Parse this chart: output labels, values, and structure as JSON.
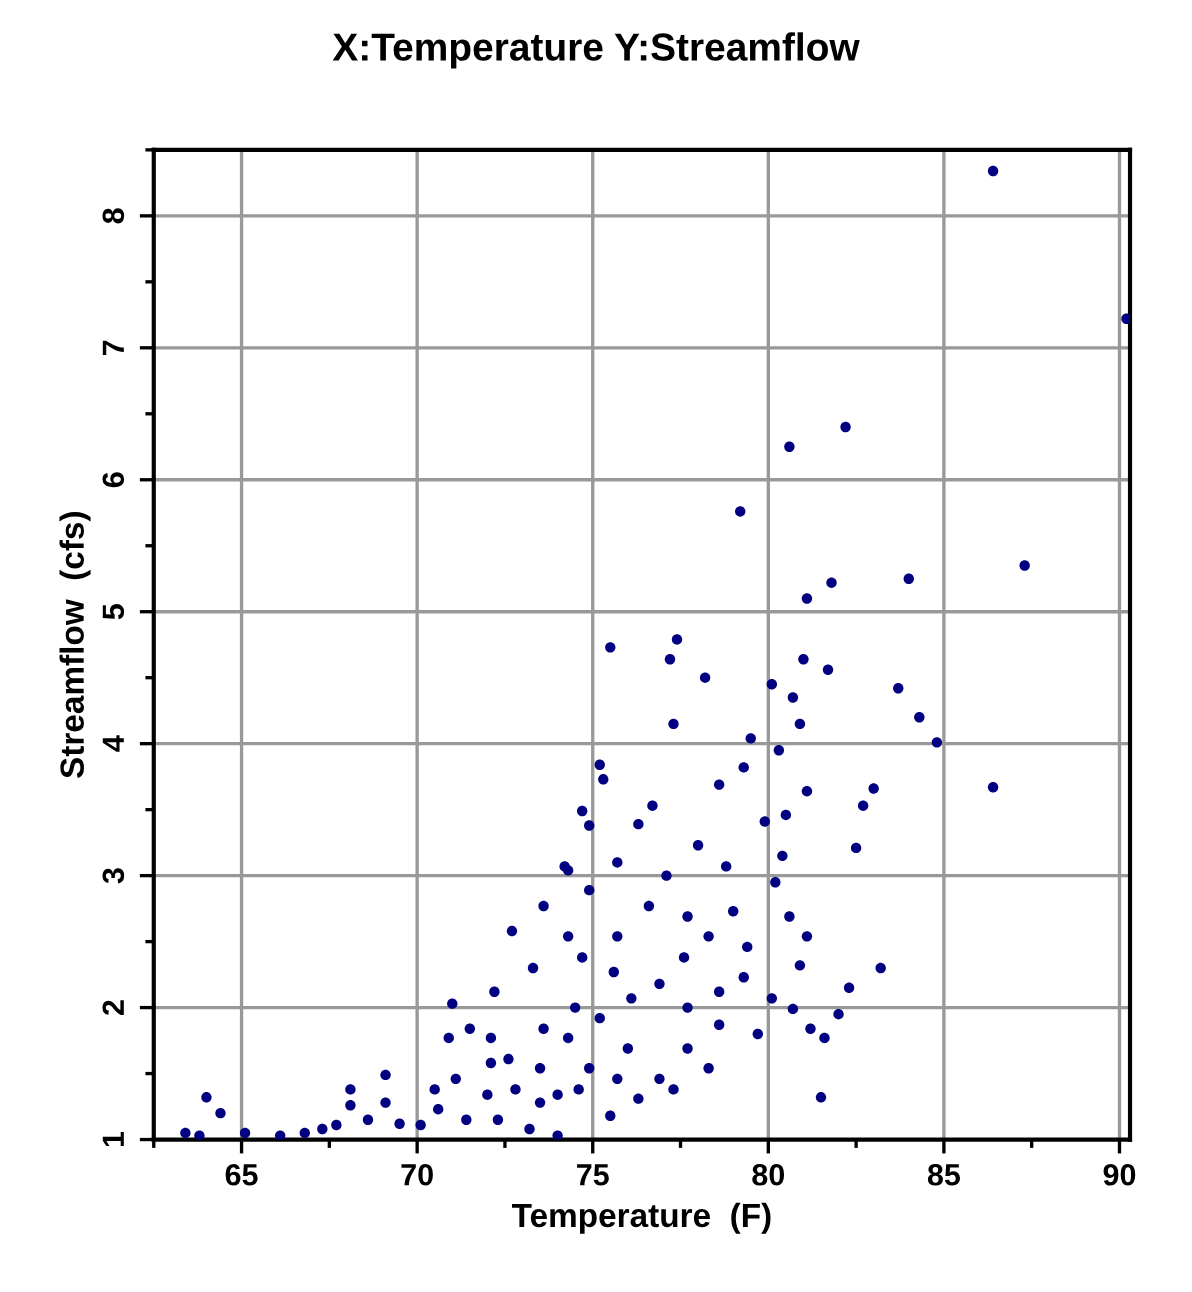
{
  "chart_data": {
    "type": "scatter",
    "title": "X:Temperature Y:Streamflow",
    "xlabel": "Temperature  (F)",
    "ylabel": "Streamflow  (cfs)",
    "x": [
      86.4,
      90.2,
      82.2,
      80.6,
      79.2,
      87.3,
      84.0,
      81.8,
      81.1,
      75.5,
      77.4,
      77.2,
      78.2,
      83.7,
      81.0,
      81.7,
      80.1,
      86.4,
      84.8,
      84.3,
      80.7,
      80.9,
      80.3,
      79.5,
      79.3,
      78.6,
      77.3,
      75.2,
      75.3,
      74.7,
      74.9,
      74.2,
      75.7,
      76.7,
      76.3,
      78.0,
      78.8,
      79.9,
      80.5,
      81.1,
      82.7,
      83.0,
      82.5,
      83.2,
      82.3,
      82.0,
      81.6,
      81.5,
      80.9,
      80.6,
      81.1,
      80.1,
      80.7,
      81.2,
      79.7,
      79.3,
      78.6,
      79.0,
      77.7,
      78.3,
      77.6,
      76.9,
      76.1,
      75.6,
      74.7,
      74.3,
      73.6,
      73.3,
      72.7,
      72.2,
      71.5,
      71.0,
      70.9,
      72.1,
      72.6,
      73.5,
      74.3,
      75.2,
      76.0,
      76.9,
      77.7,
      78.3,
      78.6,
      76.3,
      75.5,
      74.6,
      73.5,
      72.8,
      72.0,
      71.4,
      70.6,
      70.5,
      70.1,
      69.5,
      69.1,
      68.6,
      68.1,
      67.7,
      67.3,
      66.8,
      66.1,
      65.1,
      63.8,
      63.4,
      64.0,
      64.4,
      69.1,
      68.1,
      71.1,
      72.1,
      73.6,
      74.5,
      75.7,
      76.6,
      74.0,
      74.9,
      75.7,
      77.3,
      72.3,
      73.2,
      74.0,
      77.7,
      79.4,
      80.2,
      80.4,
      77.1,
      74.9,
      74.3
    ],
    "values": [
      8.34,
      7.22,
      6.4,
      6.25,
      5.76,
      5.35,
      5.25,
      5.22,
      5.1,
      4.73,
      4.79,
      4.64,
      4.5,
      4.42,
      4.64,
      4.56,
      4.45,
      3.67,
      4.01,
      4.2,
      4.35,
      4.15,
      3.95,
      4.04,
      3.82,
      3.69,
      4.15,
      3.84,
      3.73,
      3.49,
      3.38,
      3.07,
      3.1,
      3.53,
      3.39,
      3.23,
      3.07,
      3.41,
      3.46,
      3.64,
      3.53,
      3.66,
      3.21,
      2.3,
      2.15,
      1.95,
      1.77,
      1.32,
      2.32,
      2.69,
      2.54,
      2.07,
      1.99,
      1.84,
      1.8,
      2.23,
      2.12,
      2.73,
      2.69,
      2.54,
      2.38,
      2.18,
      2.07,
      2.27,
      2.38,
      2.54,
      2.77,
      2.3,
      2.58,
      2.12,
      1.84,
      2.03,
      1.77,
      1.77,
      1.61,
      1.54,
      1.77,
      1.92,
      1.69,
      1.46,
      1.69,
      1.54,
      1.87,
      1.31,
      1.18,
      1.38,
      1.28,
      1.38,
      1.34,
      1.15,
      1.23,
      1.38,
      1.11,
      1.12,
      1.28,
      1.15,
      1.26,
      1.11,
      1.08,
      1.05,
      1.03,
      1.05,
      1.03,
      1.05,
      1.32,
      1.2,
      1.49,
      1.38,
      1.46,
      1.58,
      1.84,
      2.0,
      2.54,
      2.77,
      1.34,
      1.54,
      1.46,
      1.38,
      1.15,
      1.08,
      1.03,
      2.0,
      2.46,
      2.95,
      3.15,
      3.0,
      2.89,
      3.04
    ],
    "color": "#000080",
    "marker": "circle",
    "grid": true,
    "xlim": [
      62.5,
      90.3
    ],
    "xticks": [
      65,
      70,
      75,
      80,
      85,
      90
    ],
    "ylim": [
      1,
      8.5
    ],
    "yticks": [
      1,
      2,
      3,
      4,
      5,
      6,
      7,
      8
    ]
  }
}
